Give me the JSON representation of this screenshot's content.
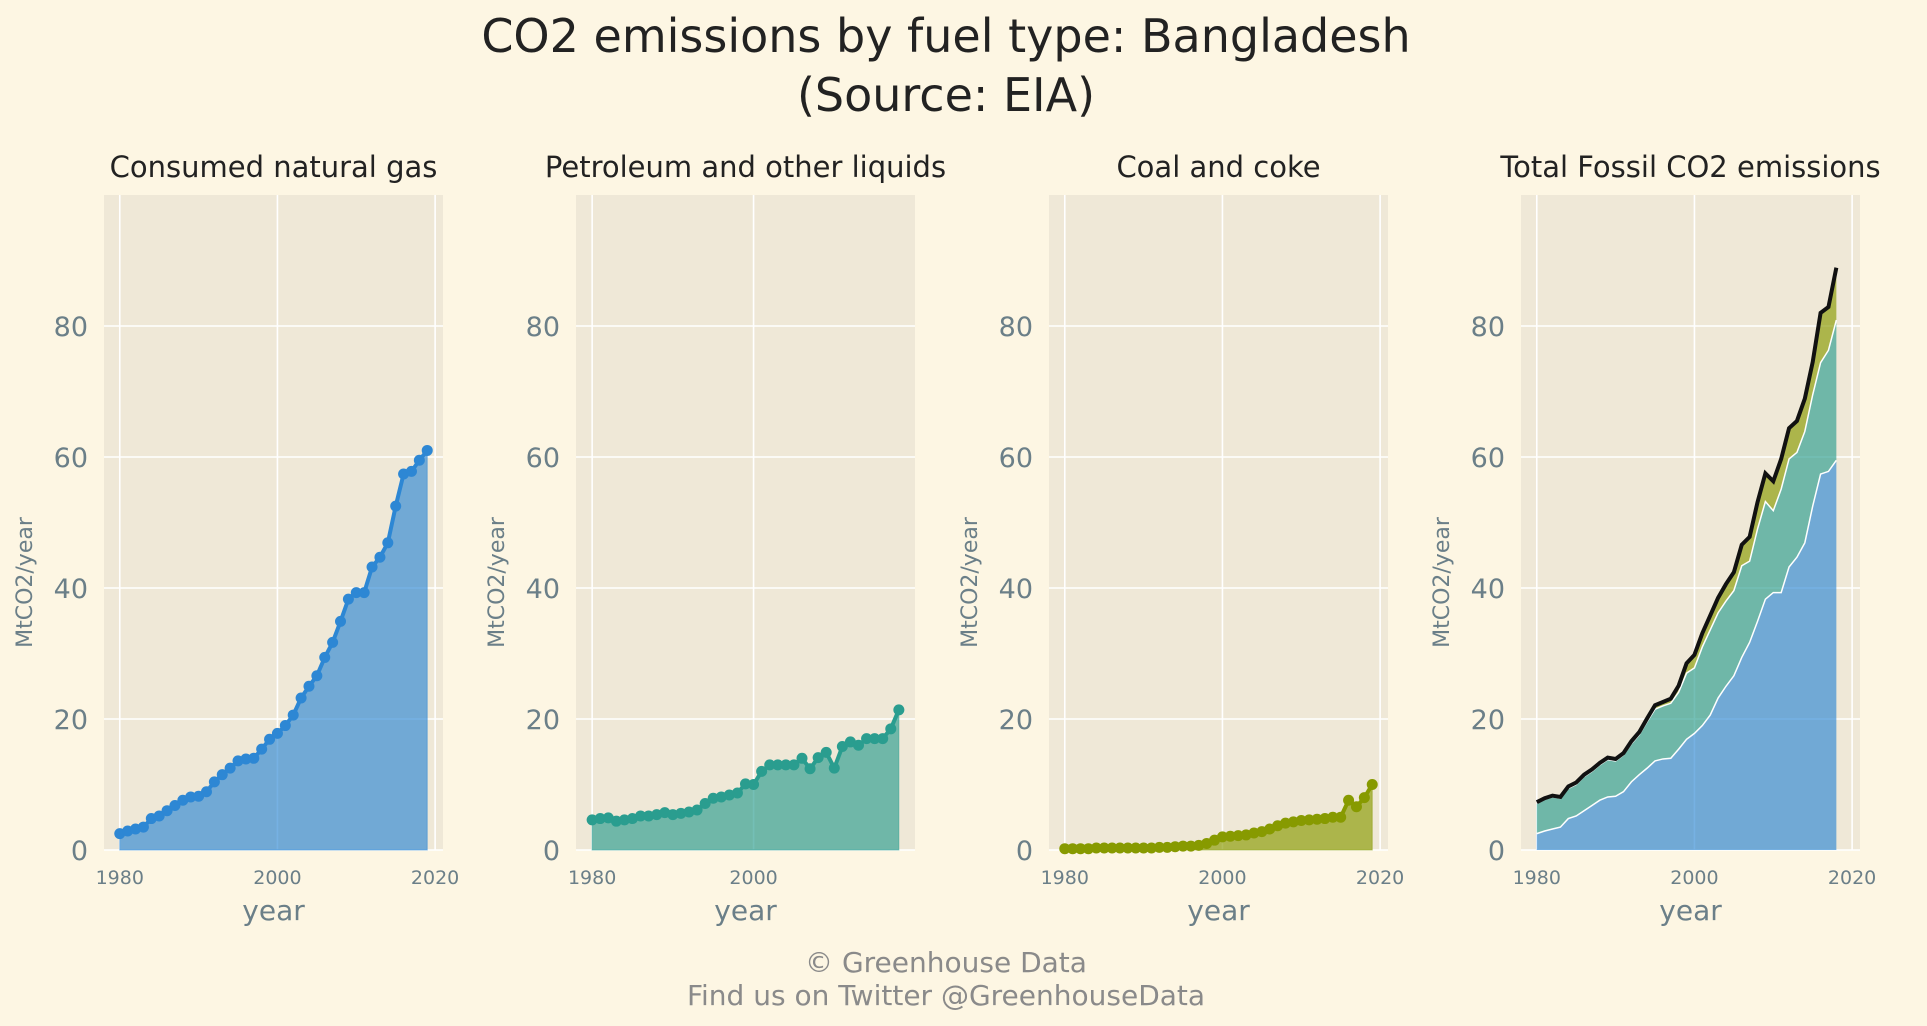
{
  "figure": {
    "title_line1": "CO2 emissions by fuel type: Bangladesh",
    "title_line2": "(Source: EIA)",
    "footer_line1": "© Greenhouse Data",
    "footer_line2": "Find us on Twitter @GreenhouseData"
  },
  "colors": {
    "background": "#fdf6e3",
    "plot_background": "#efe8d7",
    "gas": "#2d87d4",
    "petroleum": "#2a9d8f",
    "coal": "#879a00",
    "total": "#111111"
  },
  "chart_data": [
    {
      "type": "area",
      "title": "Consumed natural gas",
      "xlabel": "year",
      "ylabel": "MtCO2/year",
      "x_ticks": [
        1980,
        2000,
        2020
      ],
      "y_ticks": [
        0,
        20,
        40,
        60,
        80
      ],
      "xlim": [
        1978,
        2021
      ],
      "ylim": [
        0,
        100
      ],
      "grid": true,
      "series": [
        {
          "color": "#2d87d4",
          "x": [
            1980,
            1981,
            1982,
            1983,
            1984,
            1985,
            1986,
            1987,
            1988,
            1989,
            1990,
            1991,
            1992,
            1993,
            1994,
            1995,
            1996,
            1997,
            1998,
            1999,
            2000,
            2001,
            2002,
            2003,
            2004,
            2005,
            2006,
            2007,
            2008,
            2009,
            2010,
            2011,
            2012,
            2013,
            2014,
            2015,
            2016,
            2017,
            2018,
            2019
          ],
          "values": [
            2.5,
            2.9,
            3.2,
            3.5,
            4.8,
            5.2,
            6.0,
            6.8,
            7.6,
            8.1,
            8.2,
            8.9,
            10.4,
            11.5,
            12.5,
            13.6,
            13.9,
            14.0,
            15.4,
            16.9,
            17.8,
            19.0,
            20.6,
            23.2,
            25.0,
            26.6,
            29.4,
            31.7,
            34.9,
            38.3,
            39.3,
            39.3,
            43.2,
            44.7,
            46.9,
            52.5,
            57.4,
            57.8,
            59.5,
            61.0
          ]
        }
      ]
    },
    {
      "type": "area",
      "title": "Petroleum and other liquids",
      "xlabel": "year",
      "ylabel": "MtCO2/year",
      "x_ticks": [
        1980,
        2000
      ],
      "y_ticks": [
        0,
        20,
        40,
        60,
        80
      ],
      "xlim": [
        1978,
        2020
      ],
      "ylim": [
        0,
        100
      ],
      "grid": true,
      "series": [
        {
          "color": "#2a9d8f",
          "x": [
            1980,
            1981,
            1982,
            1983,
            1984,
            1985,
            1986,
            1987,
            1988,
            1989,
            1990,
            1991,
            1992,
            1993,
            1994,
            1995,
            1996,
            1997,
            1998,
            1999,
            2000,
            2001,
            2002,
            2003,
            2004,
            2005,
            2006,
            2007,
            2008,
            2009,
            2010,
            2011,
            2012,
            2013,
            2014,
            2015,
            2016,
            2017,
            2018
          ],
          "values": [
            4.6,
            4.8,
            4.9,
            4.4,
            4.6,
            4.8,
            5.2,
            5.2,
            5.4,
            5.7,
            5.4,
            5.6,
            5.8,
            6.1,
            7.1,
            7.9,
            8.1,
            8.4,
            8.7,
            10.1,
            10.0,
            12.0,
            13.0,
            13.0,
            13.0,
            13.0,
            14.0,
            12.4,
            14.1,
            14.9,
            12.5,
            15.8,
            16.5,
            16.0,
            17.0,
            17.0,
            17.0,
            18.5,
            21.4
          ]
        }
      ]
    },
    {
      "type": "area",
      "title": "Coal and coke",
      "xlabel": "year",
      "ylabel": "MtCO2/year",
      "x_ticks": [
        1980,
        2000,
        2020
      ],
      "y_ticks": [
        0,
        20,
        40,
        60,
        80
      ],
      "xlim": [
        1978,
        2021
      ],
      "ylim": [
        0,
        100
      ],
      "grid": true,
      "series": [
        {
          "color": "#879a00",
          "x": [
            1980,
            1981,
            1982,
            1983,
            1984,
            1985,
            1986,
            1987,
            1988,
            1989,
            1990,
            1991,
            1992,
            1993,
            1994,
            1995,
            1996,
            1997,
            1998,
            1999,
            2000,
            2001,
            2002,
            2003,
            2004,
            2005,
            2006,
            2007,
            2008,
            2009,
            2010,
            2011,
            2012,
            2013,
            2014,
            2015,
            2016,
            2017,
            2018,
            2019
          ],
          "values": [
            0.2,
            0.2,
            0.2,
            0.2,
            0.3,
            0.3,
            0.3,
            0.3,
            0.3,
            0.3,
            0.3,
            0.3,
            0.4,
            0.4,
            0.5,
            0.6,
            0.6,
            0.7,
            1.0,
            1.5,
            2.0,
            2.1,
            2.2,
            2.3,
            2.6,
            2.8,
            3.2,
            3.7,
            4.1,
            4.3,
            4.5,
            4.6,
            4.7,
            4.8,
            5.0,
            5.0,
            7.6,
            6.6,
            8.0,
            10.0
          ]
        }
      ]
    },
    {
      "type": "area",
      "stacked": true,
      "title": "Total Fossil CO2 emissions",
      "xlabel": "year",
      "ylabel": "MtCO2/year",
      "x_ticks": [
        1980,
        2000,
        2020
      ],
      "y_ticks": [
        0,
        20,
        40,
        60,
        80
      ],
      "xlim": [
        1978,
        2021
      ],
      "ylim": [
        0,
        100
      ],
      "grid": true,
      "x": [
        1980,
        1981,
        1982,
        1983,
        1984,
        1985,
        1986,
        1987,
        1988,
        1989,
        1990,
        1991,
        1992,
        1993,
        1994,
        1995,
        1996,
        1997,
        1998,
        1999,
        2000,
        2001,
        2002,
        2003,
        2004,
        2005,
        2006,
        2007,
        2008,
        2009,
        2010,
        2011,
        2012,
        2013,
        2014,
        2015,
        2016,
        2017,
        2018
      ],
      "series": [
        {
          "color": "#2d87d4",
          "values": [
            2.5,
            2.9,
            3.2,
            3.5,
            4.8,
            5.2,
            6.0,
            6.8,
            7.6,
            8.1,
            8.2,
            8.9,
            10.4,
            11.5,
            12.5,
            13.6,
            13.9,
            14.0,
            15.4,
            16.9,
            17.8,
            19.0,
            20.6,
            23.2,
            25.0,
            26.6,
            29.4,
            31.7,
            34.9,
            38.3,
            39.3,
            39.3,
            43.2,
            44.7,
            46.9,
            52.5,
            57.4,
            57.8,
            59.5
          ]
        },
        {
          "color": "#2a9d8f",
          "values": [
            4.6,
            4.8,
            4.9,
            4.4,
            4.6,
            4.8,
            5.2,
            5.2,
            5.4,
            5.7,
            5.4,
            5.6,
            5.8,
            6.1,
            7.1,
            7.9,
            8.1,
            8.4,
            8.7,
            10.1,
            10.0,
            12.0,
            13.0,
            13.0,
            13.0,
            13.0,
            14.0,
            12.4,
            14.1,
            14.9,
            12.5,
            15.8,
            16.5,
            16.0,
            17.0,
            17.0,
            17.0,
            18.5,
            21.4
          ]
        },
        {
          "color": "#879a00",
          "values": [
            0.2,
            0.2,
            0.2,
            0.2,
            0.3,
            0.3,
            0.3,
            0.3,
            0.3,
            0.3,
            0.3,
            0.3,
            0.4,
            0.4,
            0.5,
            0.6,
            0.6,
            0.7,
            1.0,
            1.5,
            2.0,
            2.1,
            2.2,
            2.3,
            2.6,
            2.8,
            3.2,
            3.7,
            4.1,
            4.3,
            4.5,
            4.6,
            4.7,
            4.8,
            5.0,
            5.0,
            7.6,
            6.6,
            8.0
          ]
        }
      ],
      "total_line_color": "#111111"
    }
  ]
}
